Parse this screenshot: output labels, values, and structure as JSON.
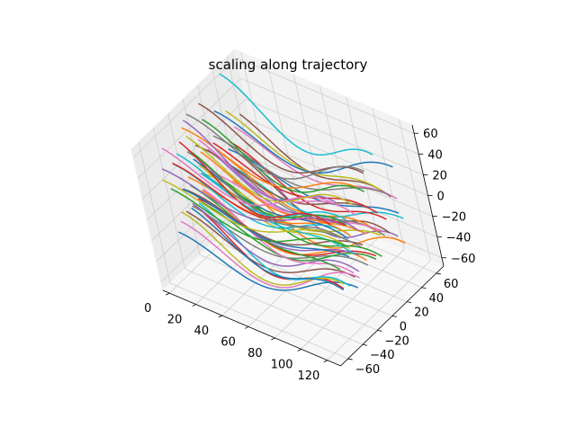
{
  "chart_data": {
    "type": "line",
    "projection": "3d",
    "title": "scaling along trajectory",
    "xlabel": "",
    "ylabel": "",
    "zlabel": "",
    "x_ticks": [
      "0",
      "20",
      "40",
      "60",
      "80",
      "100",
      "120"
    ],
    "y_ticks": [
      "−60",
      "−40",
      "−20",
      "0",
      "20",
      "40",
      "60"
    ],
    "z_ticks": [
      "−60",
      "−40",
      "−20",
      "0",
      "20",
      "40",
      "60"
    ],
    "xlim": [
      -5,
      130
    ],
    "ylim": [
      -70,
      70
    ],
    "zlim": [
      -68,
      68
    ],
    "grid": true,
    "legend": "none",
    "colors": [
      "#1f77b4",
      "#ff7f0e",
      "#2ca02c",
      "#d62728",
      "#9467bd",
      "#8c564b",
      "#e377c2",
      "#7f7f7f",
      "#bcbd22",
      "#17becf"
    ],
    "series_pattern": "sinusoidal curves along x (0 to 125), each offset in y and z, amplitude scaling with offset",
    "num_series": 60
  }
}
